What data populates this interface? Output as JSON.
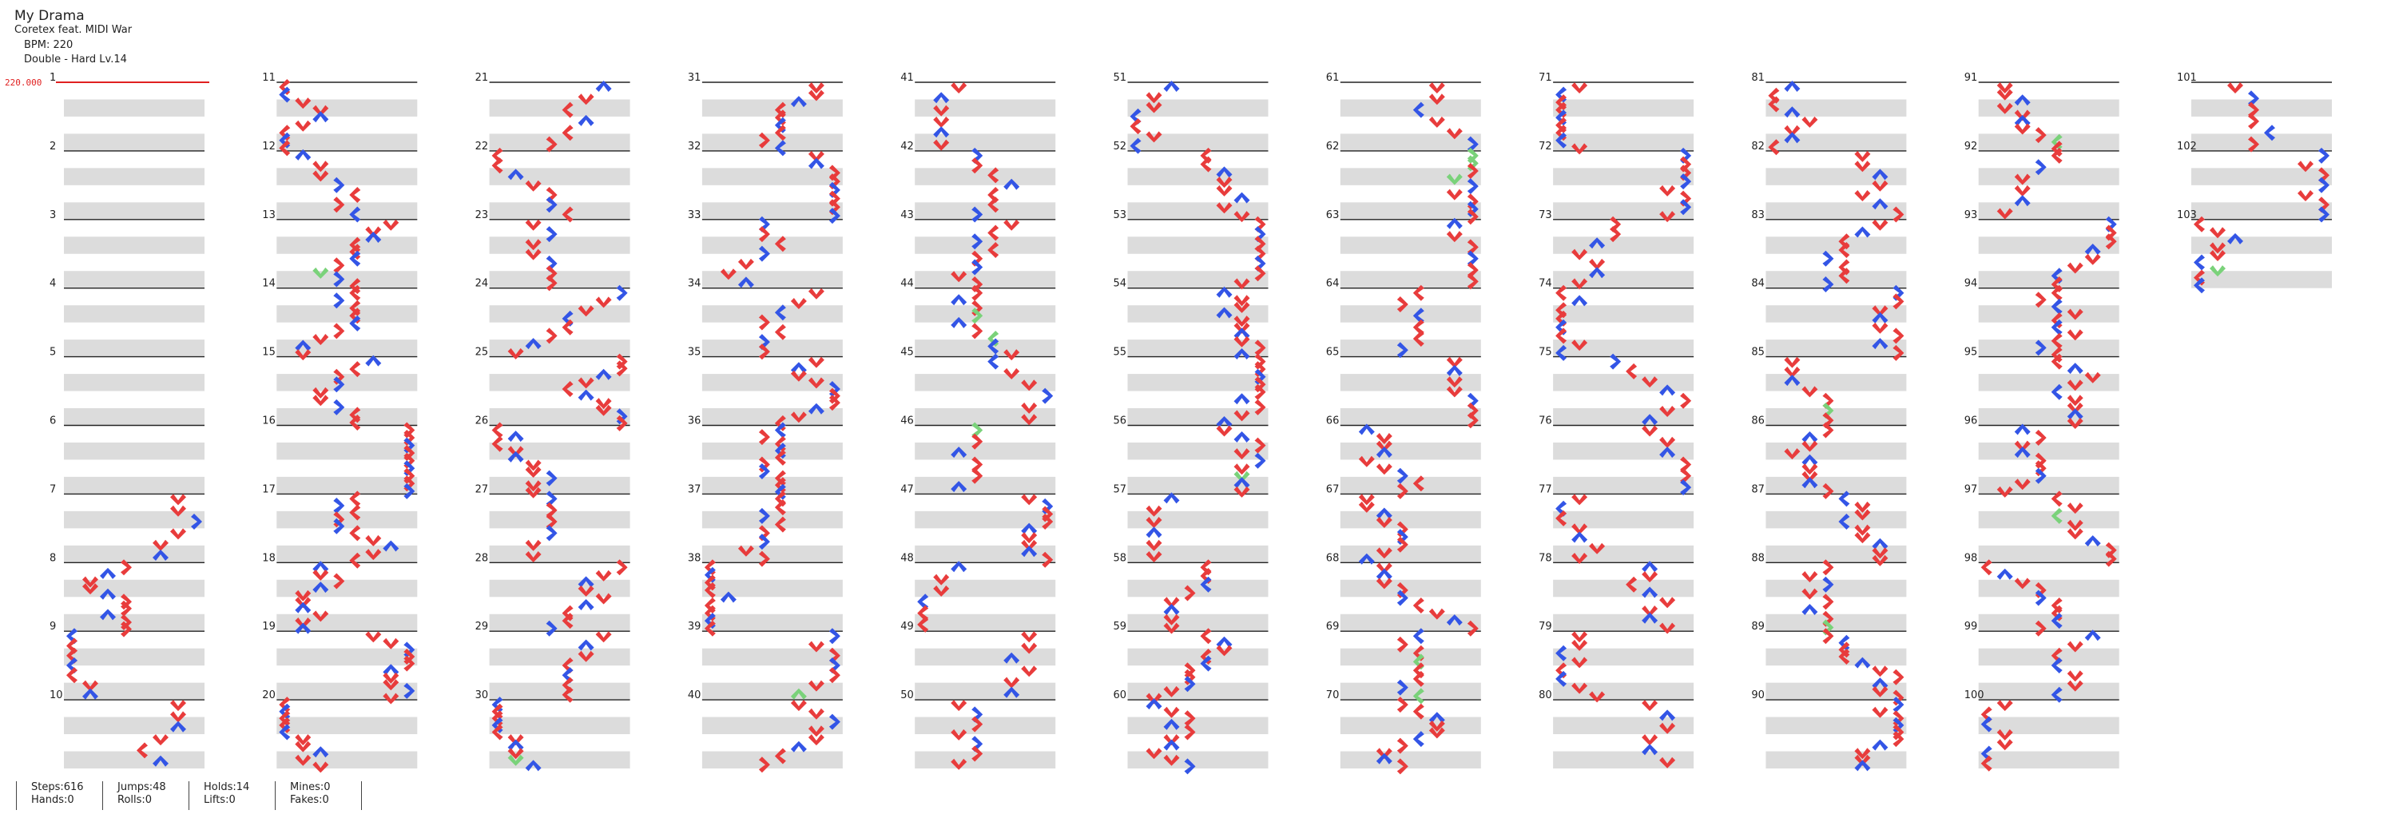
{
  "header": {
    "title": "My Drama",
    "artist": "Coretex feat. MIDI War",
    "bpm_label": "BPM: 220",
    "difficulty": "Double - Hard Lv.14"
  },
  "chart": {
    "bpm_marker": "220.000",
    "measure_count": 103,
    "measures_per_column": 10,
    "lanes": 8,
    "rows_per_measure": 4,
    "colors": {
      "red_arrow": "#e83c3c",
      "blue_arrow": "#3355e6",
      "green_mine": "#7ad27a",
      "row_shade": "#dcdcdc",
      "bpm_line": "#e02020"
    }
  },
  "stats": {
    "steps": "Steps:616",
    "hands": "Hands:0",
    "jumps": "Jumps:48",
    "rolls": "Rolls:0",
    "holds": "Holds:14",
    "lifts": "Lifts:0",
    "mines": "Mines:0",
    "fakes": "Fakes:0"
  }
}
